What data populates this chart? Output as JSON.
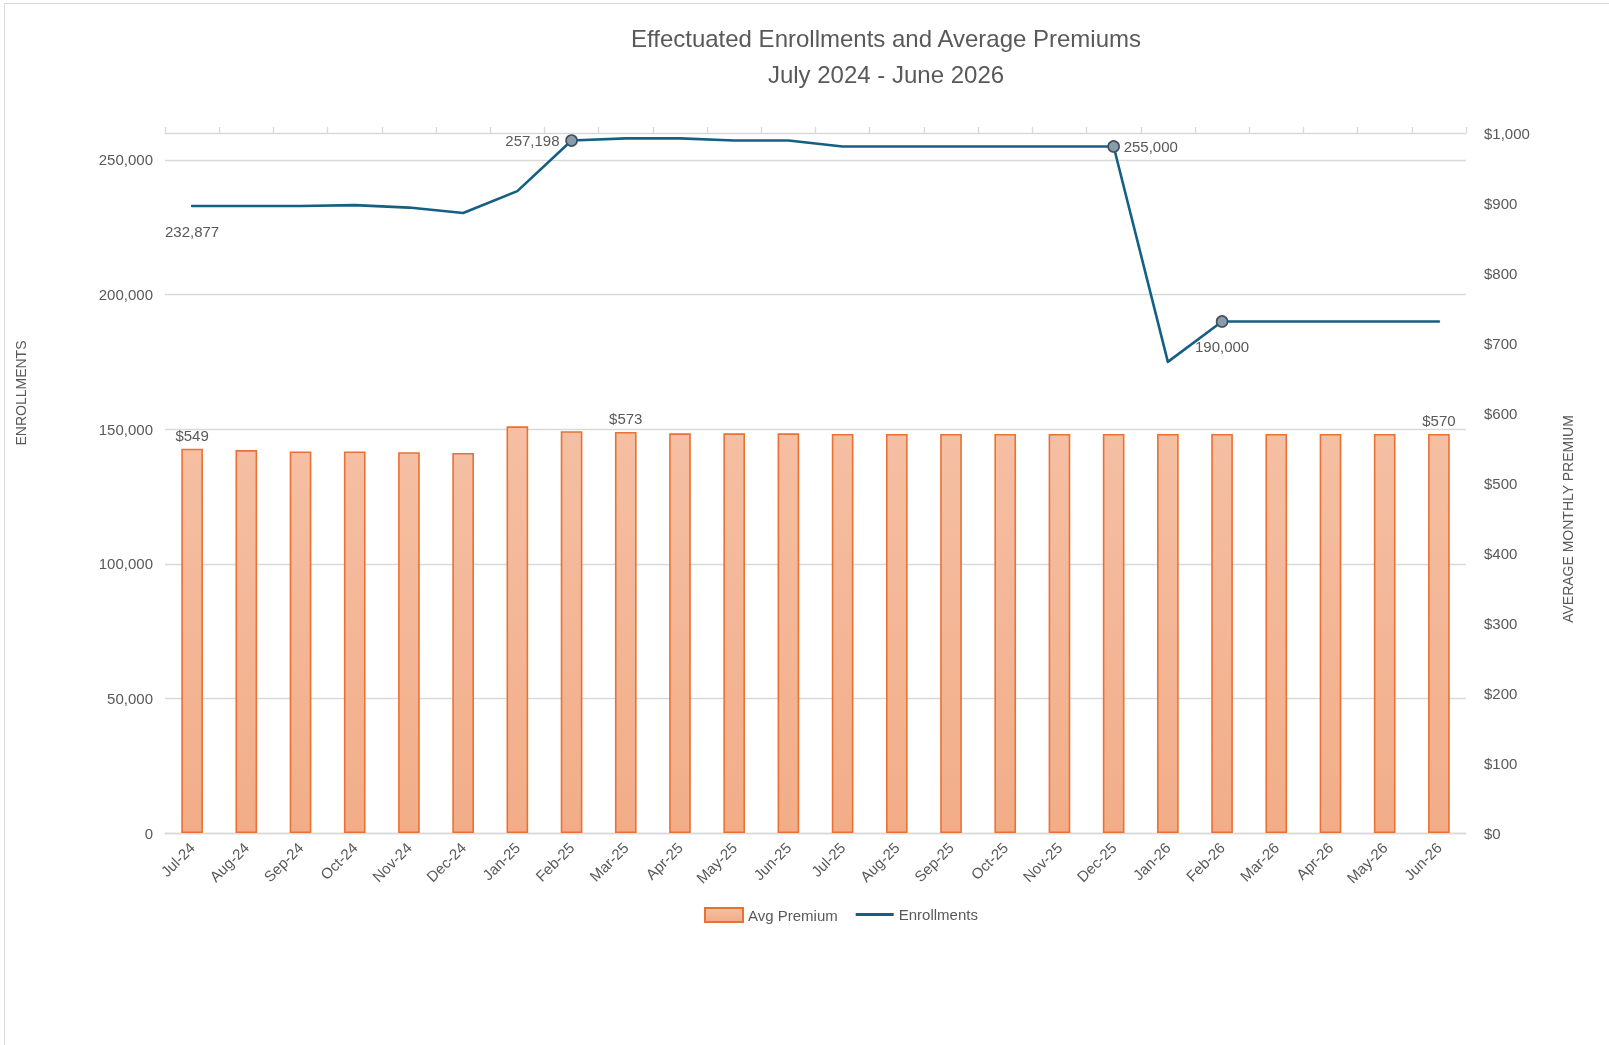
{
  "chart_data": {
    "type": "bar",
    "title": "Effectuated Enrollments and Average Premiums",
    "subtitle": "July 2024 - June 2026",
    "ylabel": "ENROLLMENTS",
    "y2label": "AVERAGE MONTHLY PREMIUM",
    "categories": [
      "Jul-24",
      "Aug-24",
      "Sep-24",
      "Oct-24",
      "Nov-24",
      "Dec-24",
      "Jan-25",
      "Feb-25",
      "Mar-25",
      "Apr-25",
      "May-25",
      "Jun-25",
      "Jul-25",
      "Aug-25",
      "Sep-25",
      "Oct-25",
      "Nov-25",
      "Dec-25",
      "Jan-26",
      "Feb-26",
      "Mar-26",
      "Apr-26",
      "May-26",
      "Jun-26"
    ],
    "series": [
      {
        "name": "Avg Premium",
        "axis": "y2",
        "color": "#e97132",
        "values": [
          549,
          547,
          545,
          545,
          544,
          543,
          581,
          574,
          573,
          571,
          571,
          571,
          570,
          570,
          570,
          570,
          570,
          570,
          570,
          570,
          570,
          570,
          570,
          570
        ],
        "value_labels": [
          "$549",
          null,
          null,
          null,
          null,
          null,
          null,
          null,
          "$573",
          null,
          null,
          null,
          null,
          null,
          null,
          null,
          null,
          null,
          null,
          null,
          null,
          null,
          null,
          "$570"
        ]
      },
      {
        "name": "Enrollments",
        "type": "line",
        "color": "#156082",
        "marker": "none",
        "values": [
          232877,
          232900,
          232900,
          233200,
          232300,
          230300,
          238400,
          257198,
          258000,
          258000,
          257200,
          257200,
          255000,
          255000,
          255000,
          255000,
          255000,
          255000,
          175000,
          190000,
          190000,
          190000,
          190000,
          190000
        ],
        "value_labels": [
          "232,877",
          null,
          null,
          null,
          null,
          null,
          null,
          "257,198",
          null,
          null,
          null,
          null,
          null,
          null,
          null,
          null,
          null,
          "255,000",
          null,
          "190,000",
          null,
          null,
          null,
          null
        ]
      },
      {
        "type": "scatter",
        "color": "#8a9cac",
        "marker": "circle",
        "x": [
          "Feb-25",
          "Dec-25",
          "Feb-26"
        ],
        "values": [
          257198,
          255000,
          190000
        ]
      }
    ],
    "ylim": [
      0,
      260000
    ],
    "yticks": [
      0,
      {
        "value": 50000,
        "label": "50,000"
      },
      {
        "value": 100000,
        "label": "100,000"
      },
      {
        "value": 150000,
        "label": "150,000"
      },
      {
        "value": 200000,
        "label": "200,000"
      },
      {
        "value": 250000,
        "label": "250,000"
      }
    ],
    "y2lim": [
      0,
      1000
    ],
    "y2ticks": [
      {
        "value": 0,
        "label": "$0"
      },
      {
        "value": 100,
        "label": "$100"
      },
      {
        "value": 200,
        "label": "$200"
      },
      {
        "value": 300,
        "label": "$300"
      },
      {
        "value": 400,
        "label": "$400"
      },
      {
        "value": 500,
        "label": "$500"
      },
      {
        "value": 600,
        "label": "$600"
      },
      {
        "value": 700,
        "label": "$700"
      },
      {
        "value": 800,
        "label": "$800"
      },
      {
        "value": 900,
        "label": "$900"
      },
      {
        "value": 1000,
        "label": "$1,000"
      }
    ],
    "grid": "y",
    "legend": "bottom"
  }
}
